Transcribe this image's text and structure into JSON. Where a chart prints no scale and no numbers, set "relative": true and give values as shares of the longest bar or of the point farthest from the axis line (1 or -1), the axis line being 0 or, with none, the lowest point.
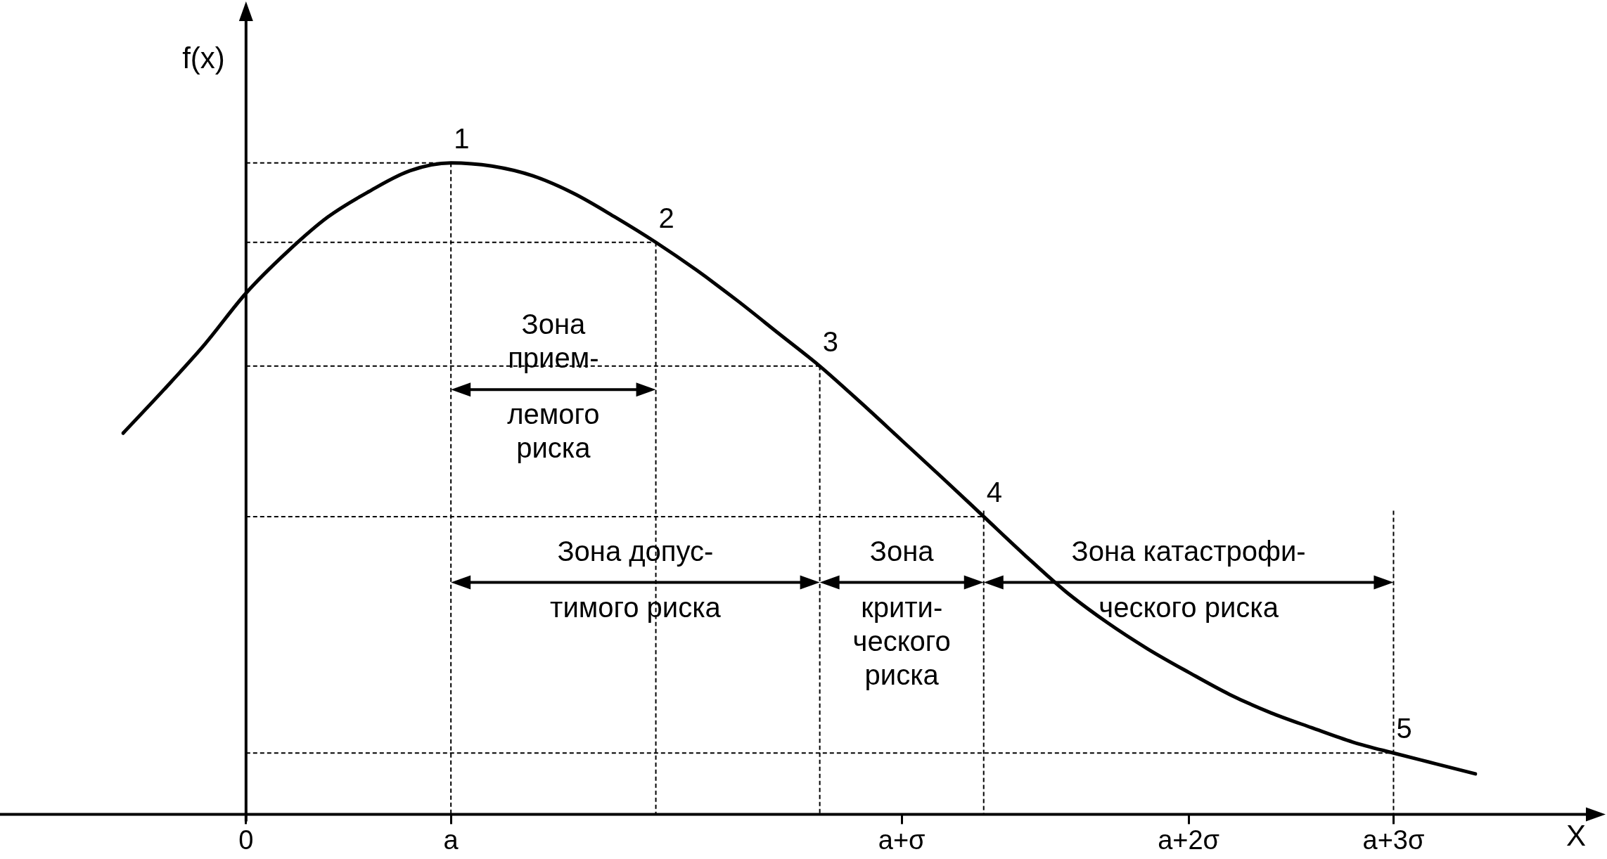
{
  "chart_data": {
    "type": "line",
    "relative": true,
    "xlabel": "X",
    "ylabel": "f(x)",
    "categories": [
      null,
      null,
      null,
      "0",
      null,
      null,
      null,
      null,
      "a",
      null,
      null,
      null,
      null,
      null,
      null,
      null,
      null,
      null,
      null,
      "a+σ",
      null,
      null,
      null,
      null,
      null,
      null,
      "a+2σ",
      null,
      null,
      null,
      null,
      "a+3σ",
      null,
      null
    ],
    "series": [
      {
        "color": "#000000",
        "values": [
          0.585,
          0.652,
          0.722,
          0.8,
          0.863,
          0.917,
          0.956,
          0.988,
          1.0,
          0.995,
          0.98,
          0.953,
          0.917,
          0.878,
          0.835,
          0.788,
          0.738,
          0.688,
          0.632,
          0.574,
          0.516,
          0.457,
          0.398,
          0.342,
          0.295,
          0.254,
          0.218,
          0.184,
          0.156,
          0.133,
          0.111,
          0.094,
          0.078,
          0.062
        ]
      }
    ],
    "annotations": [
      "1",
      "2",
      "3",
      "4",
      "5",
      "Зона\nприем-\nлемого\nриска",
      "Зона допус-\nтимого риска",
      "Зона\nкрити-\nческого\nриска",
      "Зона катастрофи-\nческого риска"
    ],
    "legend": false,
    "marker": "none",
    "line_style": "solid"
  }
}
